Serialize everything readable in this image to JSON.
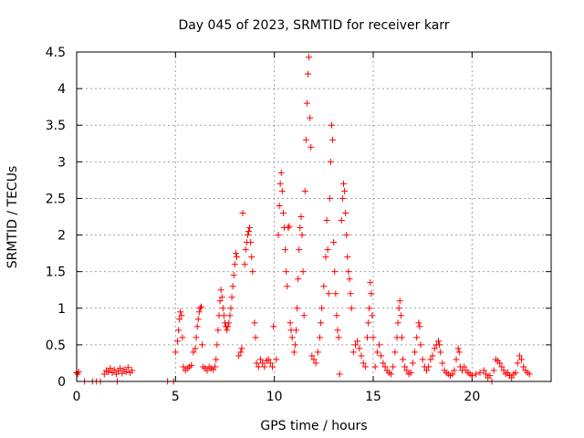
{
  "chart_data": {
    "type": "scatter",
    "title": "Day 045 of 2023, SRMTID for receiver karr",
    "xlabel": "GPS time / hours",
    "ylabel": "SRMTID / TECUs",
    "xlim": [
      0,
      24
    ],
    "ylim": [
      0,
      4.5
    ],
    "xticks": [
      0,
      5,
      10,
      15,
      20
    ],
    "yticks": [
      0,
      0.5,
      1,
      1.5,
      2,
      2.5,
      3,
      3.5,
      4,
      4.5
    ],
    "xtick_labels": [
      "0",
      "5",
      "10",
      "15",
      "20"
    ],
    "ytick_labels": [
      "0",
      "0.5",
      "1",
      "1.5",
      "2",
      "2.5",
      "3",
      "3.5",
      "4",
      "4.5"
    ],
    "grid": true,
    "marker": "+",
    "color": "#ff0000",
    "series": [
      {
        "name": "SRMTID",
        "points": [
          [
            0.0,
            0.12
          ],
          [
            0.05,
            0.1
          ],
          [
            0.1,
            0.13
          ],
          [
            0.4,
            0.0
          ],
          [
            0.8,
            0.0
          ],
          [
            1.0,
            0.0
          ],
          [
            1.2,
            0.0
          ],
          [
            1.4,
            0.1
          ],
          [
            1.5,
            0.15
          ],
          [
            1.6,
            0.13
          ],
          [
            1.7,
            0.18
          ],
          [
            1.8,
            0.12
          ],
          [
            1.9,
            0.16
          ],
          [
            2.0,
            0.1
          ],
          [
            2.1,
            0.14
          ],
          [
            2.2,
            0.18
          ],
          [
            2.3,
            0.11
          ],
          [
            2.4,
            0.16
          ],
          [
            2.5,
            0.13
          ],
          [
            2.6,
            0.19
          ],
          [
            2.7,
            0.12
          ],
          [
            2.8,
            0.15
          ],
          [
            2.05,
            0.0
          ],
          [
            4.6,
            0.0
          ],
          [
            4.9,
            0.0
          ],
          [
            5.0,
            0.4
          ],
          [
            5.1,
            0.55
          ],
          [
            5.15,
            0.7
          ],
          [
            5.2,
            0.85
          ],
          [
            5.25,
            0.95
          ],
          [
            5.3,
            0.9
          ],
          [
            5.35,
            0.6
          ],
          [
            5.4,
            0.2
          ],
          [
            5.5,
            0.15
          ],
          [
            5.6,
            0.18
          ],
          [
            5.7,
            0.2
          ],
          [
            5.8,
            0.22
          ],
          [
            5.9,
            0.4
          ],
          [
            6.0,
            0.45
          ],
          [
            6.05,
            0.6
          ],
          [
            6.1,
            0.75
          ],
          [
            6.15,
            0.85
          ],
          [
            6.2,
            0.95
          ],
          [
            6.25,
            1.0
          ],
          [
            6.3,
            1.02
          ],
          [
            6.35,
            0.5
          ],
          [
            6.4,
            0.2
          ],
          [
            6.5,
            0.18
          ],
          [
            6.6,
            0.15
          ],
          [
            6.7,
            0.2
          ],
          [
            6.8,
            0.18
          ],
          [
            6.9,
            0.16
          ],
          [
            7.0,
            0.2
          ],
          [
            7.05,
            0.3
          ],
          [
            7.1,
            0.5
          ],
          [
            7.15,
            0.7
          ],
          [
            7.2,
            0.9
          ],
          [
            7.25,
            1.1
          ],
          [
            7.3,
            1.25
          ],
          [
            7.35,
            1.15
          ],
          [
            7.4,
            1.0
          ],
          [
            7.45,
            0.9
          ],
          [
            7.5,
            0.8
          ],
          [
            7.55,
            0.75
          ],
          [
            7.6,
            0.7
          ],
          [
            7.65,
            0.75
          ],
          [
            7.7,
            0.8
          ],
          [
            7.75,
            0.9
          ],
          [
            7.8,
            1.0
          ],
          [
            7.85,
            1.15
          ],
          [
            7.9,
            1.3
          ],
          [
            7.95,
            1.45
          ],
          [
            8.0,
            1.6
          ],
          [
            8.05,
            1.75
          ],
          [
            8.1,
            1.7
          ],
          [
            8.2,
            0.35
          ],
          [
            8.3,
            0.4
          ],
          [
            8.35,
            0.45
          ],
          [
            8.4,
            2.3
          ],
          [
            8.5,
            1.6
          ],
          [
            8.55,
            1.8
          ],
          [
            8.6,
            1.9
          ],
          [
            8.65,
            2.0
          ],
          [
            8.7,
            2.05
          ],
          [
            8.75,
            2.1
          ],
          [
            8.8,
            1.9
          ],
          [
            8.85,
            1.7
          ],
          [
            8.9,
            1.5
          ],
          [
            9.0,
            0.8
          ],
          [
            9.05,
            0.6
          ],
          [
            9.1,
            0.25
          ],
          [
            9.2,
            0.2
          ],
          [
            9.3,
            0.3
          ],
          [
            9.4,
            0.25
          ],
          [
            9.5,
            0.2
          ],
          [
            9.6,
            0.28
          ],
          [
            9.7,
            0.3
          ],
          [
            9.8,
            0.25
          ],
          [
            9.9,
            0.2
          ],
          [
            9.95,
            0.75
          ],
          [
            10.1,
            0.3
          ],
          [
            10.2,
            2.0
          ],
          [
            10.25,
            2.4
          ],
          [
            10.3,
            2.7
          ],
          [
            10.35,
            2.85
          ],
          [
            10.4,
            2.6
          ],
          [
            10.45,
            2.3
          ],
          [
            10.5,
            2.1
          ],
          [
            10.55,
            1.8
          ],
          [
            10.6,
            1.5
          ],
          [
            10.65,
            1.3
          ],
          [
            10.7,
            2.1
          ],
          [
            10.75,
            2.12
          ],
          [
            10.8,
            0.8
          ],
          [
            10.85,
            0.7
          ],
          [
            10.9,
            0.6
          ],
          [
            11.0,
            0.4
          ],
          [
            11.05,
            0.5
          ],
          [
            11.1,
            0.7
          ],
          [
            11.15,
            1.0
          ],
          [
            11.2,
            1.4
          ],
          [
            11.25,
            1.8
          ],
          [
            11.3,
            2.1
          ],
          [
            11.35,
            2.25
          ],
          [
            11.4,
            2.0
          ],
          [
            11.45,
            1.5
          ],
          [
            11.5,
            0.9
          ],
          [
            11.55,
            2.6
          ],
          [
            11.6,
            3.3
          ],
          [
            11.65,
            3.8
          ],
          [
            11.7,
            4.2
          ],
          [
            11.75,
            4.43
          ],
          [
            11.8,
            3.6
          ],
          [
            11.85,
            3.2
          ],
          [
            11.9,
            0.35
          ],
          [
            12.0,
            0.3
          ],
          [
            12.1,
            0.25
          ],
          [
            12.2,
            0.4
          ],
          [
            12.3,
            0.6
          ],
          [
            12.35,
            0.8
          ],
          [
            12.4,
            1.0
          ],
          [
            12.5,
            1.3
          ],
          [
            12.6,
            1.7
          ],
          [
            12.65,
            2.2
          ],
          [
            12.7,
            1.8
          ],
          [
            12.75,
            1.2
          ],
          [
            12.8,
            2.5
          ],
          [
            12.85,
            3.0
          ],
          [
            12.9,
            3.5
          ],
          [
            12.95,
            3.3
          ],
          [
            13.0,
            1.9
          ],
          [
            13.05,
            1.5
          ],
          [
            13.1,
            1.2
          ],
          [
            13.15,
            0.9
          ],
          [
            13.2,
            0.7
          ],
          [
            13.25,
            0.6
          ],
          [
            13.3,
            0.1
          ],
          [
            13.4,
            2.2
          ],
          [
            13.45,
            2.5
          ],
          [
            13.5,
            2.7
          ],
          [
            13.55,
            2.6
          ],
          [
            13.6,
            2.3
          ],
          [
            13.65,
            2.0
          ],
          [
            13.7,
            1.7
          ],
          [
            13.75,
            1.5
          ],
          [
            13.8,
            1.4
          ],
          [
            13.85,
            1.2
          ],
          [
            13.9,
            1.0
          ],
          [
            14.0,
            0.4
          ],
          [
            14.1,
            0.5
          ],
          [
            14.2,
            0.55
          ],
          [
            14.3,
            0.45
          ],
          [
            14.4,
            0.35
          ],
          [
            14.5,
            0.25
          ],
          [
            14.6,
            0.2
          ],
          [
            14.7,
            0.6
          ],
          [
            14.75,
            0.8
          ],
          [
            14.8,
            1.0
          ],
          [
            14.85,
            1.35
          ],
          [
            14.9,
            1.2
          ],
          [
            14.95,
            0.9
          ],
          [
            15.0,
            0.6
          ],
          [
            15.1,
            0.2
          ],
          [
            15.2,
            0.4
          ],
          [
            15.3,
            0.5
          ],
          [
            15.4,
            0.35
          ],
          [
            15.5,
            0.25
          ],
          [
            15.6,
            0.2
          ],
          [
            15.7,
            0.15
          ],
          [
            15.8,
            0.12
          ],
          [
            15.9,
            0.1
          ],
          [
            16.0,
            0.2
          ],
          [
            16.1,
            0.4
          ],
          [
            16.2,
            0.6
          ],
          [
            16.25,
            0.8
          ],
          [
            16.3,
            1.0
          ],
          [
            16.35,
            1.1
          ],
          [
            16.4,
            0.9
          ],
          [
            16.45,
            0.6
          ],
          [
            16.5,
            0.3
          ],
          [
            16.6,
            0.2
          ],
          [
            16.7,
            0.15
          ],
          [
            16.8,
            0.1
          ],
          [
            16.9,
            0.12
          ],
          [
            17.0,
            0.25
          ],
          [
            17.1,
            0.4
          ],
          [
            17.2,
            0.6
          ],
          [
            17.3,
            0.8
          ],
          [
            17.35,
            0.75
          ],
          [
            17.4,
            0.5
          ],
          [
            17.5,
            0.3
          ],
          [
            17.6,
            0.2
          ],
          [
            17.7,
            0.15
          ],
          [
            17.8,
            0.2
          ],
          [
            17.9,
            0.3
          ],
          [
            18.0,
            0.35
          ],
          [
            18.1,
            0.45
          ],
          [
            18.2,
            0.5
          ],
          [
            18.3,
            0.55
          ],
          [
            18.35,
            0.5
          ],
          [
            18.4,
            0.4
          ],
          [
            18.5,
            0.25
          ],
          [
            18.6,
            0.15
          ],
          [
            18.7,
            0.12
          ],
          [
            18.8,
            0.1
          ],
          [
            18.9,
            0.08
          ],
          [
            19.0,
            0.1
          ],
          [
            19.1,
            0.15
          ],
          [
            19.2,
            0.3
          ],
          [
            19.3,
            0.45
          ],
          [
            19.35,
            0.4
          ],
          [
            19.4,
            0.2
          ],
          [
            19.5,
            0.15
          ],
          [
            19.6,
            0.2
          ],
          [
            19.7,
            0.15
          ],
          [
            19.8,
            0.12
          ],
          [
            19.9,
            0.1
          ],
          [
            20.0,
            0.08
          ],
          [
            20.2,
            0.1
          ],
          [
            20.4,
            0.12
          ],
          [
            20.6,
            0.15
          ],
          [
            20.7,
            0.1
          ],
          [
            20.8,
            0.05
          ],
          [
            20.9,
            0.08
          ],
          [
            21.0,
            0.0
          ],
          [
            21.1,
            0.15
          ],
          [
            21.2,
            0.3
          ],
          [
            21.3,
            0.28
          ],
          [
            21.4,
            0.25
          ],
          [
            21.5,
            0.2
          ],
          [
            21.6,
            0.15
          ],
          [
            21.7,
            0.1
          ],
          [
            21.8,
            0.12
          ],
          [
            21.9,
            0.08
          ],
          [
            22.0,
            0.05
          ],
          [
            22.1,
            0.1
          ],
          [
            22.2,
            0.12
          ],
          [
            22.3,
            0.25
          ],
          [
            22.4,
            0.35
          ],
          [
            22.5,
            0.3
          ],
          [
            22.6,
            0.2
          ],
          [
            22.7,
            0.15
          ],
          [
            22.8,
            0.12
          ],
          [
            22.9,
            0.1
          ]
        ]
      }
    ]
  }
}
